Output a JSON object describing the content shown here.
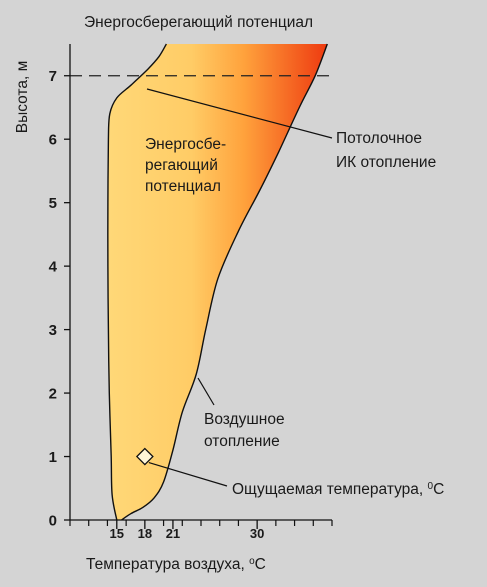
{
  "chart_data": {
    "type": "area",
    "title": "Энергосберегающий потенциал",
    "xlabel": "Температура воздуха, ",
    "xlabel_unit": "C",
    "xlabel_sup": "o",
    "ylabel": "Высота, м",
    "xlim": [
      10,
      38
    ],
    "ylim": [
      0,
      7.5
    ],
    "x_ticks": [
      15,
      18,
      21,
      30
    ],
    "x_minor_ticks": [
      10,
      12,
      14,
      16,
      20,
      22,
      24,
      26,
      28,
      32,
      34,
      36,
      38
    ],
    "y_ticks": [
      0,
      1,
      2,
      3,
      4,
      5,
      6,
      7
    ],
    "grid": false,
    "ceiling_height": 7,
    "region_label": [
      "Энергосбе-",
      "регающий",
      "потенциал"
    ],
    "series": [
      {
        "name": "Потолочное ИК отопление",
        "points": [
          [
            15,
            0
          ],
          [
            14.5,
            0.4
          ],
          [
            14.4,
            1
          ],
          [
            14.2,
            2
          ],
          [
            14.1,
            3
          ],
          [
            14.05,
            4
          ],
          [
            14.05,
            5
          ],
          [
            14.1,
            6
          ],
          [
            14.25,
            6.4
          ],
          [
            15,
            6.65
          ],
          [
            16.5,
            6.85
          ],
          [
            18.3,
            7.1
          ],
          [
            19.5,
            7.3
          ],
          [
            20.3,
            7.5
          ]
        ]
      },
      {
        "name": "Воздушное отопление",
        "points": [
          [
            15.5,
            0
          ],
          [
            16.5,
            0.1
          ],
          [
            17.8,
            0.2
          ],
          [
            19,
            0.35
          ],
          [
            20,
            0.6
          ],
          [
            21,
            1.1
          ],
          [
            22,
            1.7
          ],
          [
            23.5,
            2.3
          ],
          [
            24.5,
            3
          ],
          [
            25.8,
            3.8
          ],
          [
            28,
            4.55
          ],
          [
            30.3,
            5.2
          ],
          [
            32.3,
            5.8
          ],
          [
            34.5,
            6.5
          ],
          [
            36.2,
            7
          ],
          [
            37.5,
            7.5
          ]
        ]
      }
    ],
    "annotations": [
      {
        "text": [
          "Потолочное",
          "ИК отопление"
        ]
      },
      {
        "text": [
          "Воздушное",
          "отопление"
        ]
      },
      {
        "text": "Ощущаемая температура, ",
        "sup": "0",
        "unit": "C"
      }
    ],
    "perceived_point": {
      "x": 18,
      "y": 1
    },
    "colors": {
      "fill_cold": "#ffd878",
      "fill_warm": "#ee3a10",
      "line": "#111111",
      "background": "#d4d4d4"
    }
  }
}
